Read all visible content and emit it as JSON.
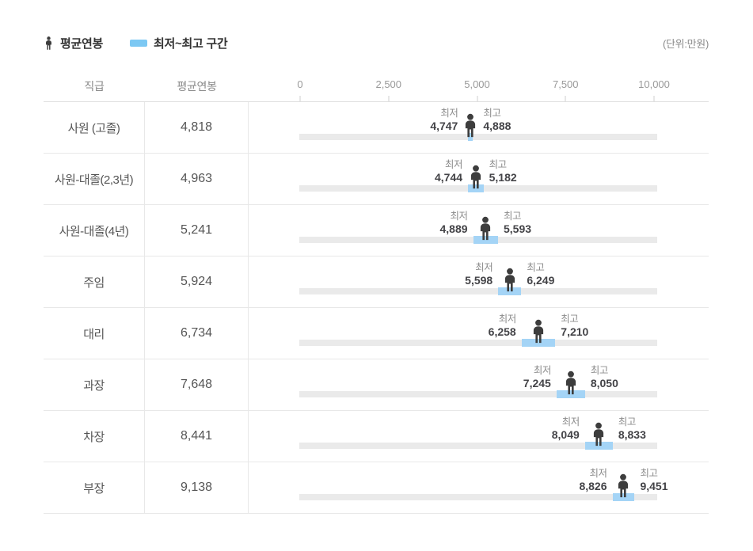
{
  "legend": {
    "avg_label": "평균연봉",
    "range_label": "최저~최고 구간",
    "avg_icon": "person-icon",
    "range_icon": "blue-range-swatch"
  },
  "unit_note": "(단위:만원)",
  "table_header": {
    "position": "직급",
    "avg_salary": "평균연봉"
  },
  "colors": {
    "range_blue": "#a4d4f6",
    "legend_blue": "#7cc8f3",
    "track_gray": "#eaeaea",
    "person_dark": "#3d3d3d"
  },
  "chart_data": {
    "type": "bar",
    "subtype": "horizontal-range-with-average-marker",
    "unit": "만원",
    "min_title": "최저",
    "max_title": "최고",
    "axis": {
      "min": 0,
      "max": 10000,
      "ticks": [
        0,
        2500,
        5000,
        7500,
        10000
      ],
      "tick_labels": [
        "0",
        "2,500",
        "5,000",
        "7,500",
        "10,000"
      ]
    },
    "rows": [
      {
        "position": "사원 (고졸)",
        "avg": 4818,
        "avg_label": "4,818",
        "min": 4747,
        "min_label": "4,747",
        "max": 4888,
        "max_label": "4,888"
      },
      {
        "position": "사원-대졸(2,3년)",
        "avg": 4963,
        "avg_label": "4,963",
        "min": 4744,
        "min_label": "4,744",
        "max": 5182,
        "max_label": "5,182"
      },
      {
        "position": "사원-대졸(4년)",
        "avg": 5241,
        "avg_label": "5,241",
        "min": 4889,
        "min_label": "4,889",
        "max": 5593,
        "max_label": "5,593"
      },
      {
        "position": "주임",
        "avg": 5924,
        "avg_label": "5,924",
        "min": 5598,
        "min_label": "5,598",
        "max": 6249,
        "max_label": "6,249"
      },
      {
        "position": "대리",
        "avg": 6734,
        "avg_label": "6,734",
        "min": 6258,
        "min_label": "6,258",
        "max": 7210,
        "max_label": "7,210"
      },
      {
        "position": "과장",
        "avg": 7648,
        "avg_label": "7,648",
        "min": 7245,
        "min_label": "7,245",
        "max": 8050,
        "max_label": "8,050"
      },
      {
        "position": "차장",
        "avg": 8441,
        "avg_label": "8,441",
        "min": 8049,
        "min_label": "8,049",
        "max": 8833,
        "max_label": "8,833"
      },
      {
        "position": "부장",
        "avg": 9138,
        "avg_label": "9,138",
        "min": 8826,
        "min_label": "8,826",
        "max": 9451,
        "max_label": "9,451"
      }
    ]
  }
}
